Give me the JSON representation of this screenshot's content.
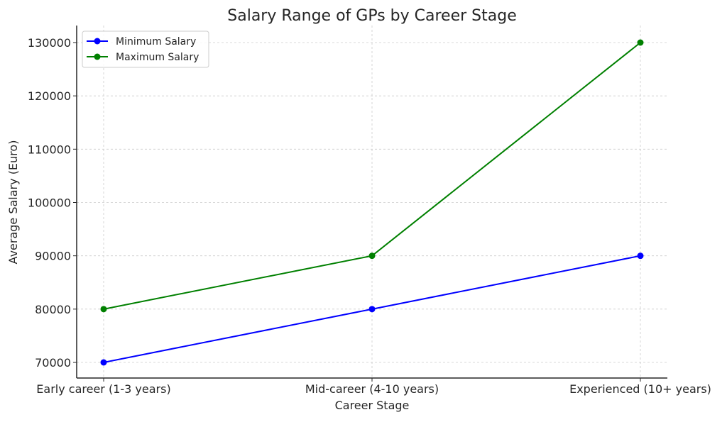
{
  "chart_data": {
    "type": "line",
    "title": "Salary Range of GPs by Career Stage",
    "xlabel": "Career Stage",
    "ylabel": "Average Salary (Euro)",
    "categories": [
      "Early career (1-3 years)",
      "Mid-career (4-10 years)",
      "Experienced (10+ years)"
    ],
    "series": [
      {
        "name": "Minimum Salary",
        "color": "#0000ff",
        "values": [
          70000,
          80000,
          90000
        ]
      },
      {
        "name": "Maximum Salary",
        "color": "#008000",
        "values": [
          80000,
          90000,
          130000
        ]
      }
    ],
    "yticks": [
      "70000",
      "80000",
      "90000",
      "100000",
      "110000",
      "120000",
      "130000"
    ],
    "ylim": [
      67000,
      133000
    ],
    "grid": true,
    "legend_position": "upper left"
  }
}
